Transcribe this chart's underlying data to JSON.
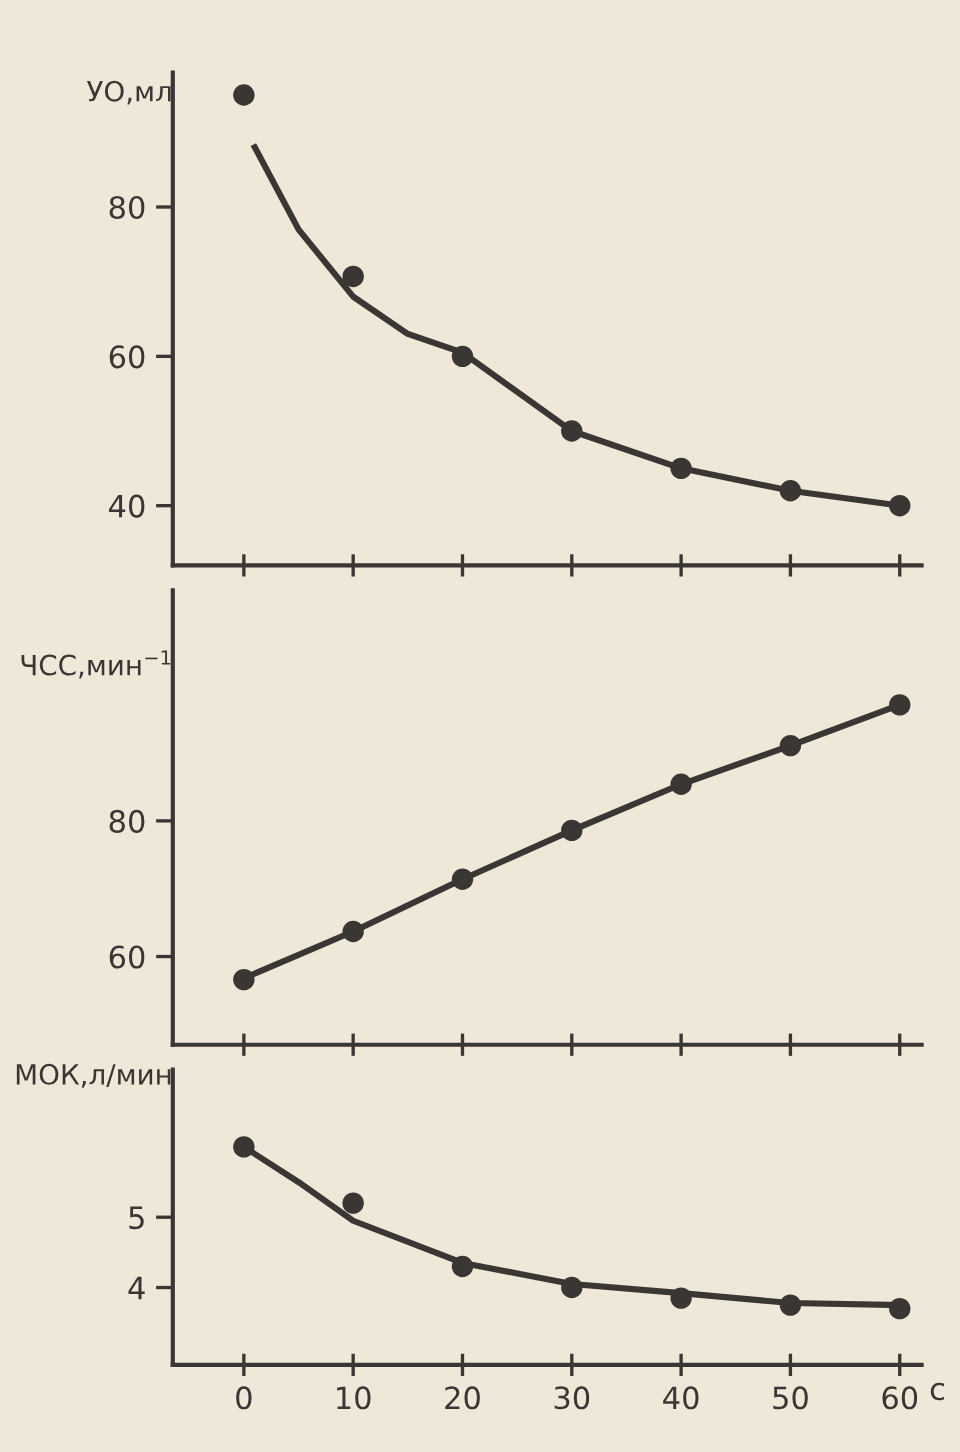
{
  "chart_data": [
    {
      "type": "scatter",
      "ylabel": "УО,мл",
      "xlim": [
        -6.5,
        62
      ],
      "xticks": [
        0,
        10,
        20,
        30,
        40,
        50,
        60
      ],
      "ylim": [
        32,
        98
      ],
      "yticks": [
        40,
        60,
        80
      ],
      "tick_labels": "y",
      "series": [
        {
          "marker": "circle",
          "color": "#3a3634",
          "x": [
            0,
            10,
            20,
            30,
            40,
            50,
            60
          ],
          "values": [
            95,
            70.7,
            60,
            50,
            45,
            42,
            40
          ]
        },
        {
          "type": "line",
          "marker": "none",
          "color": "#3a3634",
          "x": [
            1,
            5,
            10,
            15,
            20,
            30,
            40,
            50,
            60
          ],
          "values": [
            88,
            77,
            68,
            63,
            60.5,
            50,
            45,
            42,
            40
          ]
        }
      ]
    },
    {
      "type": "scatter",
      "ylabel": "ЧСС,мин$^{−1}$",
      "xlim": [
        -6.5,
        62
      ],
      "xticks": [
        0,
        10,
        20,
        30,
        40,
        50,
        60
      ],
      "ylim": [
        47,
        114
      ],
      "yticks": [
        60,
        80
      ],
      "tick_labels": "y",
      "series": [
        {
          "marker": "circle",
          "color": "#3a3634",
          "x": [
            0,
            10,
            20,
            30,
            40,
            50,
            60
          ],
          "values": [
            56.6,
            63.7,
            71.4,
            78.6,
            85.4,
            91.1,
            97.1
          ]
        },
        {
          "type": "line",
          "marker": "none",
          "color": "#3a3634",
          "x": [
            1,
            10,
            20,
            30,
            40,
            50,
            59
          ],
          "values": [
            57.5,
            63.7,
            71.4,
            78.6,
            85.4,
            91.1,
            96.5
          ]
        }
      ]
    },
    {
      "type": "scatter",
      "ylabel": "МОК,л/мин",
      "xlabel": "с",
      "xlim": [
        -6.5,
        62
      ],
      "xticks": [
        0,
        10,
        20,
        30,
        40,
        50,
        60
      ],
      "ylim": [
        2.9,
        7.1
      ],
      "yticks": [
        4,
        5
      ],
      "series": [
        {
          "marker": "circle",
          "color": "#3a3634",
          "x": [
            0,
            10,
            20,
            30,
            40,
            50,
            60
          ],
          "values": [
            6.0,
            5.2,
            4.3,
            4.0,
            3.85,
            3.75,
            3.7
          ]
        },
        {
          "type": "line",
          "marker": "none",
          "color": "#3a3634",
          "x": [
            1,
            5,
            10,
            20,
            30,
            40,
            50,
            60
          ],
          "values": [
            5.9,
            5.5,
            4.95,
            4.35,
            4.05,
            3.92,
            3.78,
            3.75
          ]
        }
      ]
    }
  ]
}
